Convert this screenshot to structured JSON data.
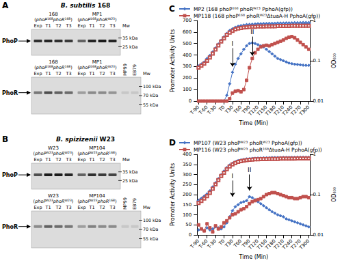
{
  "panels": [
    {
      "letter": "A",
      "title": "B. subtilis 168",
      "blots": [
        {
          "protein": "PhoP",
          "strains": [
            {
              "name": "168",
              "genotype": [
                {
                  "gene": "phoP",
                  "allele": "168"
                },
                {
                  "gene": "phoR",
                  "allele": "168"
                }
              ]
            },
            {
              "name": "MP1",
              "genotype": [
                {
                  "gene": "phoP",
                  "allele": "168"
                },
                {
                  "gene": "phoR",
                  "allele": "W23"
                }
              ]
            }
          ],
          "lanes": [
            "Exp",
            "T1",
            "T2",
            "T3"
          ],
          "controls": [],
          "control_intensity": [],
          "mw_header": "Mw",
          "mw_labels": [
            "35 kDa",
            "25 kDa"
          ],
          "band_intensity": [
            [
              0.85,
              0.9,
              0.85,
              0.8
            ],
            [
              0.6,
              0.9,
              0.95,
              0.9
            ]
          ]
        },
        {
          "protein": "PhoR",
          "strains": [
            {
              "name": "168",
              "genotype": [
                {
                  "gene": "phoP",
                  "allele": "168"
                },
                {
                  "gene": "phoR",
                  "allele": "168"
                }
              ]
            },
            {
              "name": "MP1",
              "genotype": [
                {
                  "gene": "phoP",
                  "allele": "168"
                },
                {
                  "gene": "phoR",
                  "allele": "W23"
                }
              ]
            }
          ],
          "lanes": [
            "Exp",
            "T1",
            "T2",
            "T3"
          ],
          "controls": [
            "MP99",
            "EB79"
          ],
          "control_intensity": [
            0.1,
            0.1
          ],
          "mw_header": "Mw",
          "mw_labels": [
            "100 kDa",
            "70 kDa",
            "55 kDa"
          ],
          "band_intensity": [
            [
              0.5,
              0.7,
              0.6,
              0.55
            ],
            [
              0.3,
              0.4,
              0.4,
              0.35
            ]
          ]
        }
      ]
    },
    {
      "letter": "B",
      "title": "B. spizizenii W23",
      "blots": [
        {
          "protein": "PhoP",
          "strains": [
            {
              "name": "W23",
              "genotype": [
                {
                  "gene": "phoP",
                  "allele": "W23"
                },
                {
                  "gene": "phoR",
                  "allele": "W23"
                }
              ]
            },
            {
              "name": "MP104",
              "genotype": [
                {
                  "gene": "phoP",
                  "allele": "W23"
                },
                {
                  "gene": "phoR",
                  "allele": "168"
                }
              ]
            }
          ],
          "lanes": [
            "Exp",
            "T1",
            "T2",
            "T3"
          ],
          "controls": [],
          "control_intensity": [],
          "mw_header": "Mw",
          "mw_labels": [
            "35 kDa",
            "25 kDa"
          ],
          "band_intensity": [
            [
              0.7,
              0.95,
              0.95,
              0.9
            ],
            [
              0.6,
              0.85,
              0.8,
              0.75
            ]
          ]
        },
        {
          "protein": "PhoR",
          "strains": [
            {
              "name": "W23",
              "genotype": [
                {
                  "gene": "phoP",
                  "allele": "W23"
                },
                {
                  "gene": "phoR",
                  "allele": "W23"
                }
              ]
            },
            {
              "name": "MP104",
              "genotype": [
                {
                  "gene": "phoP",
                  "allele": "W23"
                },
                {
                  "gene": "phoR",
                  "allele": "168"
                }
              ]
            }
          ],
          "lanes": [
            "Exp",
            "T1",
            "T2",
            "T3"
          ],
          "controls": [
            "MP99",
            "EB79"
          ],
          "control_intensity": [
            0.1,
            0.1
          ],
          "mw_header": "Mw",
          "mw_labels": [
            "100 kDa",
            "70 kDa",
            "55 kDa"
          ],
          "band_intensity": [
            [
              0.4,
              0.6,
              0.55,
              0.5
            ],
            [
              0.3,
              0.45,
              0.4,
              0.4
            ]
          ]
        }
      ]
    }
  ],
  "chart_data": [
    {
      "panel": "C",
      "type": "line",
      "categories": [
        "T-90",
        null,
        null,
        "T-60",
        null,
        null,
        "T-30",
        null,
        null,
        "T0",
        null,
        null,
        "T30",
        null,
        null,
        "T60",
        null,
        null,
        "T90",
        null,
        null,
        "T120",
        null,
        null,
        "T150",
        null,
        null,
        "T180",
        null,
        null,
        "T210",
        null,
        null,
        "T240",
        null,
        null,
        "T270",
        null,
        null,
        "T300"
      ],
      "xlabel": "Time (Min)",
      "ylabel": "Promoter Activity Units",
      "y2label": "OD₆₀₀",
      "ylim": [
        0,
        700
      ],
      "yticks": [
        0,
        100,
        200,
        300,
        400,
        500,
        600,
        700
      ],
      "y2lim": [
        0.01,
        1
      ],
      "y2ticks": [
        0.01,
        0.1,
        1
      ],
      "log": "y2",
      "grid": false,
      "legend": "top",
      "series": [
        {
          "name": "MP2 (168 phoP¹⁶⁸ phoRᵂ²³ PphoA(gfp))",
          "color": "#4472c4",
          "marker": "diamond",
          "values": [
            0,
            0,
            0,
            0,
            0,
            0,
            0,
            0,
            0,
            0,
            50,
            150,
            250,
            320,
            370,
            410,
            450,
            480,
            500,
            505,
            500,
            490,
            480,
            470,
            450,
            430,
            410,
            390,
            370,
            360,
            350,
            340,
            330,
            325,
            320,
            318,
            315,
            312,
            310,
            310
          ]
        },
        {
          "name": "MP118 (168 phoP¹⁶⁸ phoRᵂ²³ΔtuaA-H PphoA(gfp))",
          "color": "#c0504d",
          "marker": "square",
          "values": [
            0,
            0,
            0,
            0,
            0,
            0,
            0,
            0,
            0,
            0,
            0,
            20,
            70,
            85,
            90,
            80,
            100,
            180,
            290,
            370,
            420,
            450,
            470,
            480,
            485,
            480,
            490,
            500,
            510,
            520,
            530,
            545,
            555,
            560,
            550,
            530,
            510,
            490,
            470,
            450
          ]
        },
        {
          "name": "MP2 (168 phoP¹⁶⁸ phoRᵂ²³ PphoA(gfp))",
          "color": "#4472c4",
          "marker": "diamond-open",
          "axis": "y2",
          "values": [
            0.072,
            0.08,
            0.09,
            0.11,
            0.13,
            0.16,
            0.2,
            0.25,
            0.31,
            0.38,
            0.46,
            0.54,
            0.6,
            0.65,
            0.69,
            0.72,
            0.74,
            0.76,
            0.77,
            0.78,
            0.79,
            0.8,
            0.8,
            0.81,
            0.81,
            0.82,
            0.82,
            0.82,
            0.83,
            0.83,
            0.83,
            0.84,
            0.84,
            0.84,
            0.85,
            0.85,
            0.85,
            0.86,
            0.86,
            0.86
          ]
        },
        {
          "name": "MP118 (168 phoP¹⁶⁸ phoRᵂ²³ΔtuaA-H PphoA(gfp))",
          "color": "#c0504d",
          "marker": "square-open",
          "axis": "y2",
          "values": [
            0.068,
            0.075,
            0.085,
            0.1,
            0.12,
            0.15,
            0.19,
            0.24,
            0.3,
            0.36,
            0.44,
            0.5,
            0.55,
            0.6,
            0.63,
            0.65,
            0.67,
            0.68,
            0.69,
            0.7,
            0.7,
            0.71,
            0.71,
            0.71,
            0.72,
            0.72,
            0.72,
            0.72,
            0.73,
            0.73,
            0.73,
            0.73,
            0.73,
            0.74,
            0.74,
            0.74,
            0.74,
            0.74,
            0.74,
            0.74
          ]
        }
      ],
      "annotations": [
        {
          "text": "I",
          "x_index": 12,
          "y_from": 460,
          "y_to": 300
        },
        {
          "text": "II",
          "x_index": 19,
          "y_from": 560,
          "y_to": 395
        }
      ]
    },
    {
      "panel": "D",
      "type": "line",
      "categories": [
        "T-90",
        null,
        null,
        "T-60",
        null,
        null,
        "T-30",
        null,
        null,
        "T0",
        null,
        null,
        "T30",
        null,
        null,
        "T60",
        null,
        null,
        "T90",
        null,
        null,
        "T120",
        null,
        null,
        "T150",
        null,
        null,
        "T180",
        null,
        null,
        "T210",
        null,
        null,
        "T240",
        null,
        null,
        "T270",
        null,
        null,
        "T300"
      ],
      "xlabel": "Time (Min)",
      "ylabel": "Promoter Activity Units",
      "y2label": "OD₆₀₀",
      "ylim": [
        0,
        400
      ],
      "yticks": [
        0,
        50,
        100,
        150,
        200,
        250,
        300,
        350,
        400
      ],
      "y2lim": [
        0.01,
        1
      ],
      "y2ticks": [
        0.01,
        0.1,
        1
      ],
      "log": "y2",
      "grid": false,
      "legend": "top",
      "series": [
        {
          "name": "MP107 (W23 phoPᵂ²³ phoRᵂ²³ PphoA(gfp))",
          "color": "#4472c4",
          "marker": "diamond",
          "values": [
            25,
            30,
            20,
            35,
            25,
            30,
            40,
            35,
            30,
            40,
            60,
            90,
            120,
            140,
            150,
            160,
            165,
            170,
            190,
            185,
            175,
            165,
            155,
            145,
            135,
            125,
            115,
            108,
            100,
            95,
            90,
            80,
            75,
            70,
            65,
            60,
            55,
            50,
            45,
            40
          ]
        },
        {
          "name": "MP116 (W23 phoPᵂ²³ phoR¹⁶⁸ΔtuaA-H PphoA(gfp))",
          "color": "#c0504d",
          "marker": "square",
          "values": [
            50,
            30,
            20,
            55,
            35,
            15,
            45,
            30,
            40,
            60,
            70,
            85,
            100,
            105,
            115,
            125,
            130,
            140,
            155,
            165,
            170,
            175,
            180,
            190,
            200,
            205,
            210,
            210,
            205,
            200,
            195,
            190,
            185,
            185,
            180,
            180,
            185,
            190,
            190,
            185
          ]
        },
        {
          "name": "MP107 (W23 phoPᵂ²³ phoRᵂ²³ PphoA(gfp))",
          "color": "#4472c4",
          "marker": "diamond-open",
          "axis": "y2",
          "values": [
            0.07,
            0.078,
            0.088,
            0.1,
            0.12,
            0.15,
            0.19,
            0.24,
            0.3,
            0.37,
            0.45,
            0.52,
            0.58,
            0.63,
            0.67,
            0.7,
            0.72,
            0.74,
            0.75,
            0.76,
            0.77,
            0.78,
            0.78,
            0.79,
            0.79,
            0.79,
            0.8,
            0.8,
            0.8,
            0.8,
            0.81,
            0.81,
            0.81,
            0.81,
            0.81,
            0.82,
            0.82,
            0.82,
            0.82,
            0.82
          ]
        },
        {
          "name": "MP116 (W23 phoPᵂ²³ phoR¹⁶⁸ΔtuaA-H PphoA(gfp))",
          "color": "#c0504d",
          "marker": "square-open",
          "axis": "y2",
          "values": [
            0.062,
            0.07,
            0.08,
            0.092,
            0.11,
            0.14,
            0.18,
            0.23,
            0.29,
            0.35,
            0.43,
            0.5,
            0.56,
            0.61,
            0.65,
            0.68,
            0.7,
            0.72,
            0.73,
            0.74,
            0.75,
            0.75,
            0.76,
            0.76,
            0.76,
            0.77,
            0.77,
            0.77,
            0.77,
            0.78,
            0.78,
            0.78,
            0.78,
            0.78,
            0.78,
            0.79,
            0.79,
            0.79,
            0.79,
            0.79
          ]
        }
      ],
      "annotations": [
        {
          "text": "I",
          "x_index": 12,
          "y_from": 270,
          "y_to": 190
        },
        {
          "text": "II",
          "x_index": 18,
          "y_from": 300,
          "y_to": 220
        }
      ]
    }
  ]
}
